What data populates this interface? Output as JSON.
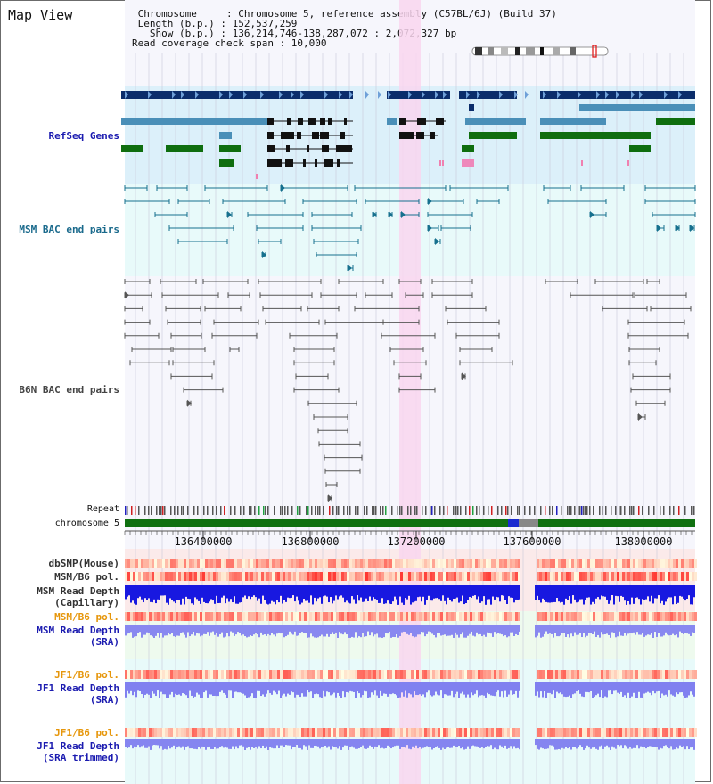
{
  "header": {
    "title": "Map View",
    "info_lines": [
      " Chromosome     : Chromosome 5, reference assembly (C57BL/6J) (Build 37)",
      " Length (b.p.) : 152,537,259",
      "   Show (b.p.) : 136,214,746-138,287,072 : 2,072,327 bp",
      "Read coverage check span : 10,000"
    ]
  },
  "tracks": {
    "refseq": {
      "label": "RefSeq Genes",
      "color": "#1b1bb0"
    },
    "msm_bac": {
      "label": "MSM BAC end pairs",
      "color": "#1a6a8c"
    },
    "b6n_bac": {
      "label": "B6N BAC end pairs",
      "color": "#444444"
    },
    "repeat": {
      "label": "Repeat"
    },
    "chromosome": {
      "label": "chromosome 5"
    },
    "dbsnp": {
      "label": "dbSNP(Mouse)",
      "color": "#333333"
    },
    "msm_b6_pol_1": {
      "label": "MSM/B6 pol.",
      "color": "#333333"
    },
    "msm_read_depth_cap": {
      "label_line1": "MSM Read Depth",
      "label_line2": "(Capillary)",
      "color": "#333333"
    },
    "msm_b6_pol_2": {
      "label": "MSM/B6 pol.",
      "color": "#e6960a"
    },
    "msm_read_depth_sra": {
      "label_line1": "MSM Read Depth",
      "label_line2": "(SRA)",
      "color": "#1b1bb0"
    },
    "jf1_b6_pol_1": {
      "label": "JF1/B6 pol.",
      "color": "#e6960a"
    },
    "jf1_read_depth_sra": {
      "label_line1": "JF1 Read Depth",
      "label_line2": "(SRA)",
      "color": "#1b1bb0"
    },
    "jf1_b6_pol_2": {
      "label": "JF1/B6 pol.",
      "color": "#e6960a"
    },
    "jf1_read_depth_trim": {
      "label_line1": "JF1 Read Depth",
      "label_line2": "(SRA trimmed)",
      "color": "#1b1bb0"
    }
  },
  "ruler": {
    "ticks": [
      "136400000",
      "136800000",
      "137200000",
      "137600000",
      "138000000"
    ]
  },
  "colors": {
    "refseq_bg": "#dcf0fa",
    "msm_bac_bg": "#e8fafa",
    "highlight": "#f9d6ef",
    "gene_dark": "#0b2d6b",
    "gene_mid": "#4a8fb8",
    "gene_green": "#0f6e0f",
    "chromosome_green": "#107010"
  }
}
